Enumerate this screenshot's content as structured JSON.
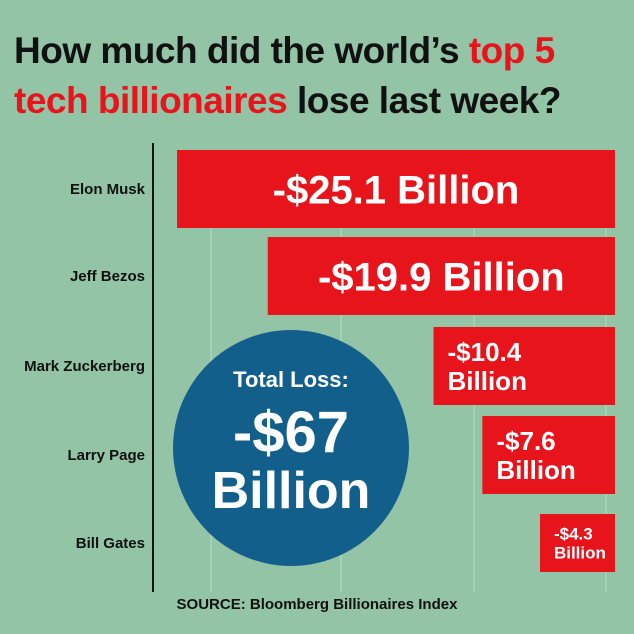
{
  "title": {
    "part1": "How much did the world’s ",
    "highlight1": "top 5",
    "highlight2": "tech billionaires",
    "part2": " lose last week?"
  },
  "colors": {
    "background": "#93c4a6",
    "bar": "#e8141c",
    "bubble": "#135f8c",
    "highlight": "#e8141c"
  },
  "total": {
    "label": "Total Loss:",
    "value_line1": "-$67",
    "value_line2": "Billion"
  },
  "source": "SOURCE: Bloomberg Billionaires Index",
  "chart_data": {
    "type": "bar",
    "orientation": "horizontal",
    "categories": [
      "Elon Musk",
      "Jeff Bezos",
      "Mark Zuckerberg",
      "Larry Page",
      "Bill Gates"
    ],
    "values": [
      25.1,
      19.9,
      10.4,
      7.6,
      4.3
    ],
    "data_labels": [
      [
        "-$25.1 Billion"
      ],
      [
        "-$19.9 Billion"
      ],
      [
        "-$10.4",
        "Billion"
      ],
      [
        "-$7.6",
        "Billion"
      ],
      [
        "-$4.3",
        "Billion"
      ]
    ],
    "grid": true,
    "bar_alignment": "right"
  }
}
